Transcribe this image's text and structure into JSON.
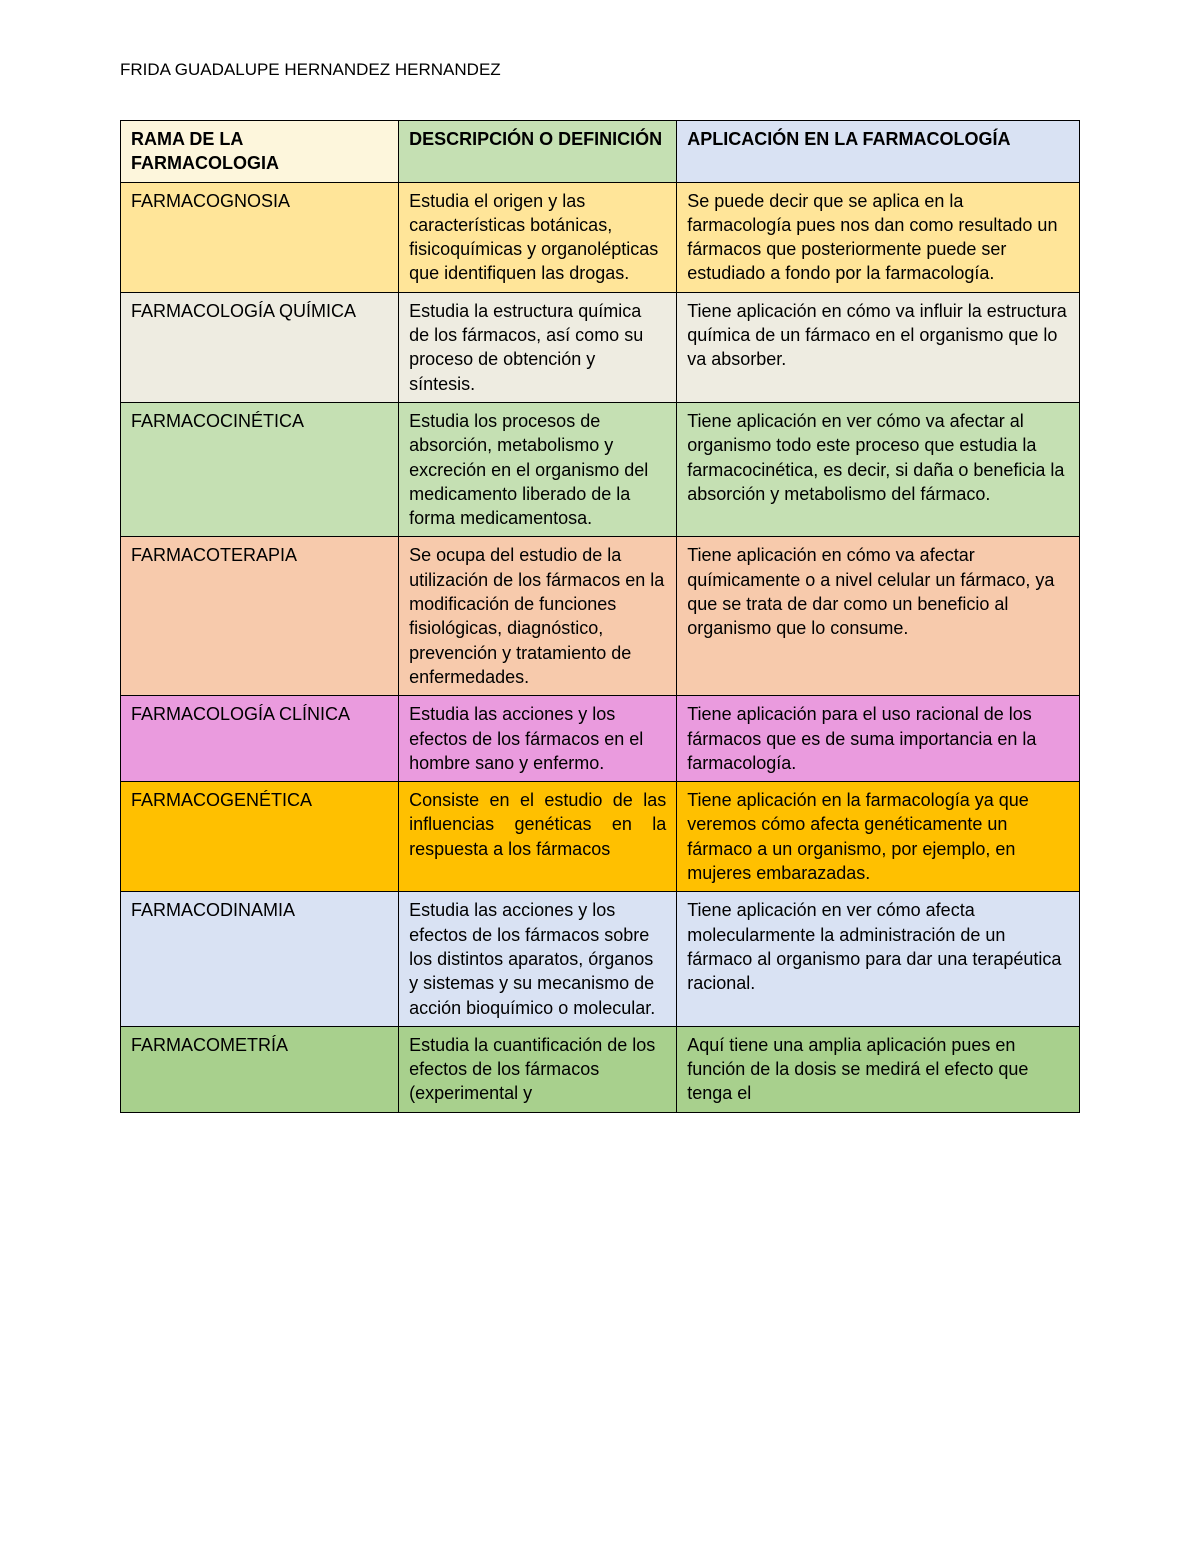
{
  "author": "FRIDA GUADALUPE HERNANDEZ HERNANDEZ",
  "table": {
    "headers": {
      "col1": "RAMA DE LA FARMACOLOGIA",
      "col2": "DESCRIPCIÓN O DEFINICIÓN",
      "col3": "APLICACIÓN EN LA FARMACOLOGÍA"
    },
    "header_colors": {
      "col1": "#fdf6dc",
      "col2": "#c5e0b3",
      "col3": "#d9e2f3"
    },
    "rows": [
      {
        "color": "#ffe599",
        "rama": "FARMACOGNOSIA",
        "descripcion": "Estudia el origen y las características botánicas, fisicoquímicas y organolépticas que identifiquen las drogas.",
        "aplicacion": "Se puede decir que se aplica en la farmacología pues nos dan como resultado un fármacos que posteriormente puede  ser estudiado a fondo por la farmacología."
      },
      {
        "color": "#eeece1",
        "rama": "FARMACOLOGÍA QUÍMICA",
        "descripcion": "Estudia la estructura química de los fármacos, así como su proceso de obtención y síntesis.",
        "aplicacion": "Tiene aplicación en cómo va influir la estructura química de un fármaco en el organismo que lo va absorber."
      },
      {
        "color": "#c5e0b3",
        "rama": "FARMACOCINÉTICA",
        "descripcion": "Estudia los procesos de absorción, metabolismo y excreción en el organismo del medicamento liberado de la forma medicamentosa.",
        "aplicacion": "Tiene aplicación en ver cómo va afectar al organismo todo este proceso que estudia la farmacocinética, es decir, si daña o beneficia la absorción y metabolismo del fármaco."
      },
      {
        "color": "#f7caac",
        "rama": "FARMACOTERAPIA",
        "descripcion": "Se ocupa del estudio de la utilización de los fármacos en la modificación de funciones fisiológicas, diagnóstico, prevención y tratamiento de enfermedades.",
        "aplicacion": "Tiene aplicación en cómo va afectar químicamente o a nivel celular un fármaco, ya que se trata de dar como un beneficio al organismo que lo consume."
      },
      {
        "color": "#ea9bde",
        "rama": "FARMACOLOGÍA CLÍNICA",
        "descripcion": "Estudia las acciones y los efectos de los fármacos en el hombre sano y enfermo.",
        "aplicacion": "Tiene aplicación para el uso racional de los fármacos que es de suma importancia en la farmacología."
      },
      {
        "color": "#ffc000",
        "rama": "FARMACOGENÉTICA",
        "descripcion": "Consiste en el estudio de las influencias genéticas en la respuesta a los fármacos",
        "aplicacion": "Tiene aplicación en la farmacología ya que veremos cómo afecta genéticamente un fármaco a un organismo, por ejemplo, en mujeres embarazadas.",
        "justify": true
      },
      {
        "color": "#d9e2f3",
        "rama": "FARMACODINAMIA",
        "descripcion": "Estudia las acciones y los efectos de los fármacos sobre los distintos aparatos, órganos y sistemas y su mecanismo de acción bioquímico o molecular.",
        "aplicacion": "Tiene aplicación en ver cómo afecta molecularmente la administración de un fármaco al organismo para dar una terapéutica racional."
      },
      {
        "color": "#a8d08d",
        "rama": "FARMACOMETRÍA",
        "descripcion": "Estudia la cuantificación de los efectos de los fármacos (experimental y",
        "aplicacion": "Aquí tiene una amplia aplicación pues en función de la dosis se medirá el efecto que tenga el"
      }
    ]
  }
}
